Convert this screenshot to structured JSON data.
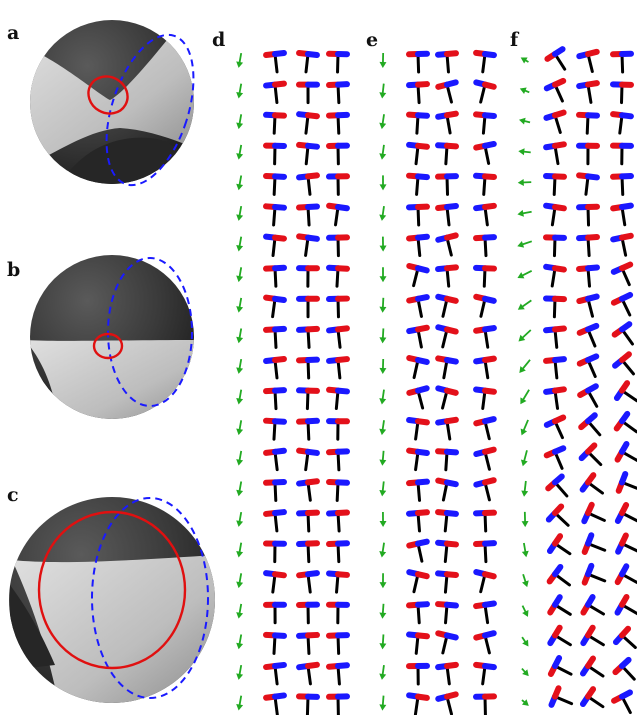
{
  "panels": [
    {
      "label": "a",
      "type": "sphere",
      "view": "tilted"
    },
    {
      "label": "b",
      "type": "sphere",
      "view": "side"
    },
    {
      "label": "c",
      "type": "sphere",
      "view": "side-large-loop"
    },
    {
      "label": "d",
      "type": "vector-grid",
      "rows": 22,
      "cols": 3,
      "pattern": "uniform"
    },
    {
      "label": "e",
      "type": "vector-grid",
      "rows": 22,
      "cols": 3,
      "pattern": "jitter"
    },
    {
      "label": "f",
      "type": "vector-grid",
      "rows": 22,
      "cols": 3,
      "pattern": "rotating"
    }
  ],
  "colors": {
    "sphere_dark": "#2e2e2e",
    "sphere_light": "#cfcfcf",
    "red_loop": "#e01010",
    "blue_dashed": "#1a1aff",
    "red_end": "#e3101a",
    "blue_end": "#1a18ff",
    "stem": "#000000",
    "arrow_green": "#22aa22"
  },
  "icons": [
    "sphere-icon",
    "triad-icon",
    "green-arrow-icon"
  ]
}
